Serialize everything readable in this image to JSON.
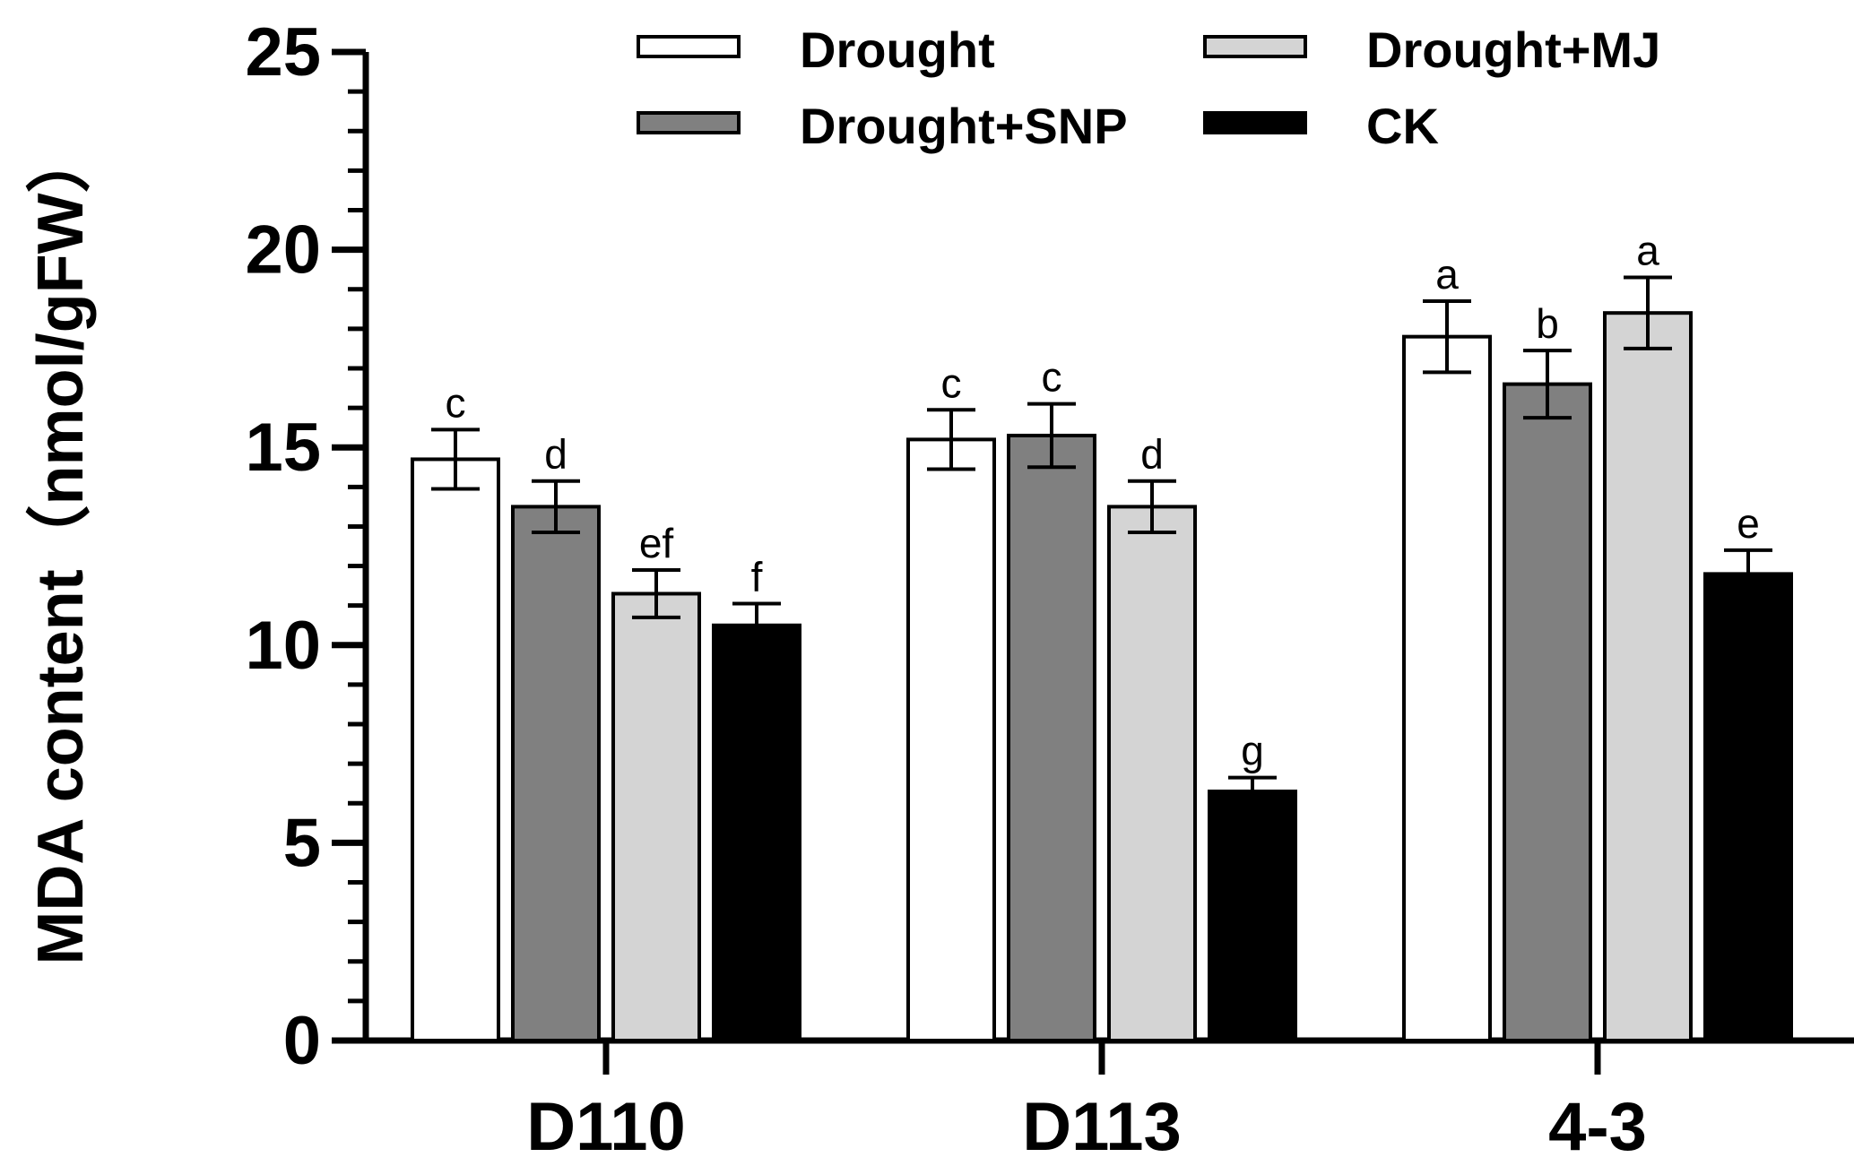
{
  "chart_data": {
    "type": "bar",
    "title": "",
    "xlabel": "",
    "ylabel": "MDA content（nmol/gFW）",
    "ylim": [
      0,
      25
    ],
    "yticks": [
      0,
      5,
      10,
      15,
      20,
      25
    ],
    "grid": false,
    "legend_position": "top-center",
    "categories": [
      "D110",
      "D113",
      "4-3"
    ],
    "series": [
      {
        "name": "Drought",
        "color": "#ffffff",
        "values": [
          14.7,
          15.2,
          17.8
        ],
        "errors": [
          0.75,
          0.75,
          0.9
        ],
        "labels": [
          "c",
          "c",
          "a"
        ]
      },
      {
        "name": "Drought+SNP",
        "color": "#808080",
        "values": [
          13.5,
          15.3,
          16.6
        ],
        "errors": [
          0.65,
          0.8,
          0.85
        ],
        "labels": [
          "d",
          "c",
          "b"
        ]
      },
      {
        "name": "Drought+MJ",
        "color": "#d4d4d4",
        "values": [
          11.3,
          13.5,
          18.4
        ],
        "errors": [
          0.6,
          0.65,
          0.9
        ],
        "labels": [
          "ef",
          "d",
          "a"
        ]
      },
      {
        "name": "CK",
        "color": "#000000",
        "values": [
          10.5,
          6.3,
          11.8
        ],
        "errors": [
          0.55,
          0.35,
          0.6
        ],
        "labels": [
          "f",
          "g",
          "e"
        ]
      }
    ]
  }
}
